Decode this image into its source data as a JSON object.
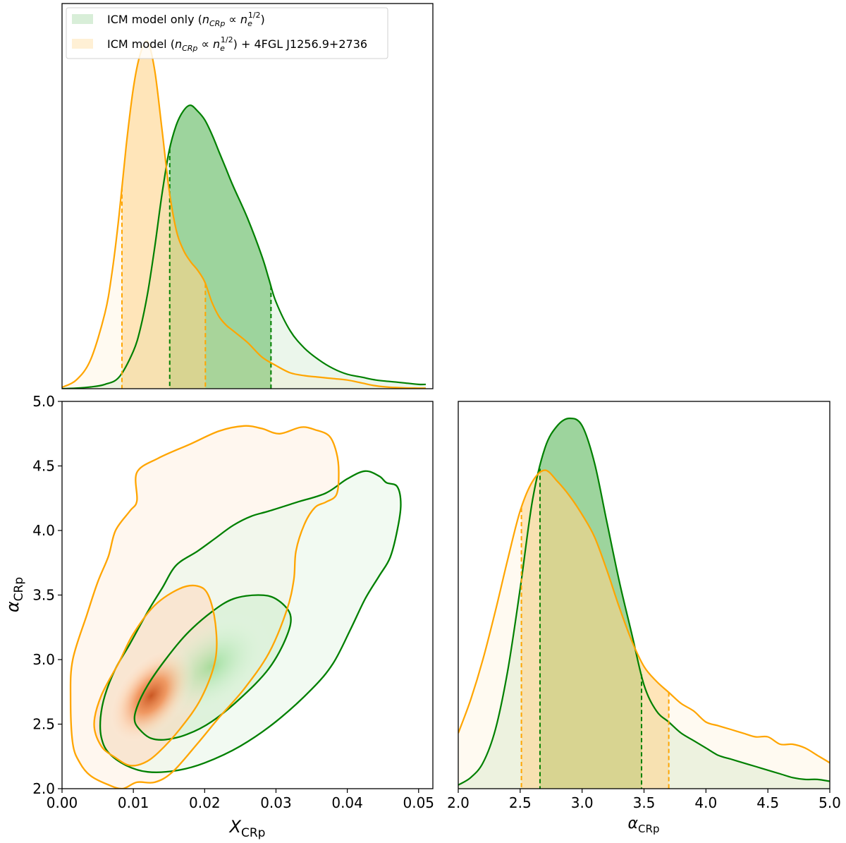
{
  "chart_data": [
    {
      "type": "area",
      "panel": "marginal-X_CRp",
      "xlim": [
        0.0,
        0.052
      ],
      "legend": {
        "placement": "top-left",
        "entries": [
          {
            "pre": "ICM model only (",
            "nsym": "n",
            "nsub": "CRp",
            "mid": " ∝ ",
            "esym": "n",
            "esub": "e",
            "esup": "1/2",
            "post": ")",
            "color": "#d8eed8"
          },
          {
            "pre": "ICM model (",
            "nsym": "n",
            "nsub": "CRp",
            "mid": " ∝ ",
            "esym": "n",
            "esub": "e",
            "esup": "1/2",
            "post": ") + 4FGL J1256.9+2736",
            "color": "#fff0d5"
          }
        ]
      },
      "series": [
        {
          "name": "ICM model only",
          "color": "#008000",
          "fill": "#5cb85c",
          "x": [
            0.0,
            0.002,
            0.004,
            0.006,
            0.008,
            0.01,
            0.011,
            0.012,
            0.013,
            0.014,
            0.015,
            0.016,
            0.017,
            0.018,
            0.019,
            0.02,
            0.021,
            0.022,
            0.023,
            0.024,
            0.026,
            0.028,
            0.029,
            0.03,
            0.032,
            0.034,
            0.036,
            0.038,
            0.04,
            0.042,
            0.044,
            0.046,
            0.048,
            0.05,
            0.051
          ],
          "y": [
            0.0,
            0.002,
            0.006,
            0.015,
            0.04,
            0.13,
            0.21,
            0.33,
            0.49,
            0.67,
            0.82,
            0.91,
            0.96,
            0.98,
            0.96,
            0.93,
            0.88,
            0.82,
            0.76,
            0.7,
            0.59,
            0.46,
            0.38,
            0.3,
            0.2,
            0.14,
            0.1,
            0.07,
            0.05,
            0.04,
            0.03,
            0.025,
            0.02,
            0.015,
            0.015
          ],
          "interval": [
            0.0151,
            0.0293
          ]
        },
        {
          "name": "ICM model + 4FGL J1256.9+2736",
          "color": "#ffa500",
          "fill": "#ffd48a",
          "x": [
            0.0,
            0.002,
            0.004,
            0.006,
            0.007,
            0.008,
            0.009,
            0.01,
            0.011,
            0.012,
            0.013,
            0.014,
            0.015,
            0.016,
            0.017,
            0.018,
            0.019,
            0.02,
            0.021,
            0.022,
            0.023,
            0.024,
            0.026,
            0.028,
            0.03,
            0.032,
            0.034,
            0.036,
            0.038,
            0.04,
            0.042,
            0.044,
            0.046,
            0.048,
            0.05,
            0.051
          ],
          "y": [
            0.005,
            0.03,
            0.1,
            0.26,
            0.4,
            0.6,
            0.84,
            1.04,
            1.16,
            1.2,
            1.1,
            0.9,
            0.69,
            0.55,
            0.48,
            0.44,
            0.41,
            0.37,
            0.3,
            0.25,
            0.22,
            0.2,
            0.16,
            0.11,
            0.08,
            0.055,
            0.045,
            0.04,
            0.035,
            0.03,
            0.02,
            0.01,
            0.005,
            0.003,
            0.002,
            0.002
          ],
          "interval": [
            0.0084,
            0.0201
          ]
        }
      ]
    },
    {
      "type": "contour",
      "panel": "joint",
      "xlabel_sym": "X",
      "xlabel_sub": "CRp",
      "ylabel_sym": "α",
      "ylabel_sub": "CRp",
      "xlim": [
        0.0,
        0.052
      ],
      "ylim": [
        2.0,
        5.0
      ],
      "xticks": [
        "0.00",
        "0.01",
        "0.02",
        "0.03",
        "0.04",
        "0.05"
      ],
      "yticks": [
        "2.0",
        "2.5",
        "3.0",
        "3.5",
        "4.0",
        "4.5",
        "5.0"
      ],
      "series": [
        {
          "name": "ICM model only",
          "color": "#008000",
          "peak": [
            0.021,
            2.95
          ],
          "contours": [
            [
              [
                0.0055,
                2.4
              ],
              [
                0.0065,
                2.28
              ],
              [
                0.009,
                2.18
              ],
              [
                0.012,
                2.13
              ],
              [
                0.016,
                2.14
              ],
              [
                0.02,
                2.2
              ],
              [
                0.025,
                2.33
              ],
              [
                0.03,
                2.52
              ],
              [
                0.035,
                2.77
              ],
              [
                0.038,
                2.97
              ],
              [
                0.0405,
                3.24
              ],
              [
                0.0425,
                3.47
              ],
              [
                0.0445,
                3.65
              ],
              [
                0.046,
                3.79
              ],
              [
                0.047,
                4.0
              ],
              [
                0.0475,
                4.2
              ],
              [
                0.047,
                4.34
              ],
              [
                0.0455,
                4.37
              ],
              [
                0.0445,
                4.42
              ],
              [
                0.0425,
                4.46
              ],
              [
                0.04,
                4.4
              ],
              [
                0.037,
                4.29
              ],
              [
                0.033,
                4.22
              ],
              [
                0.029,
                4.15
              ],
              [
                0.0265,
                4.11
              ],
              [
                0.024,
                4.04
              ],
              [
                0.0215,
                3.94
              ],
              [
                0.019,
                3.84
              ],
              [
                0.016,
                3.73
              ],
              [
                0.014,
                3.55
              ],
              [
                0.012,
                3.37
              ],
              [
                0.0095,
                3.12
              ],
              [
                0.0075,
                2.93
              ],
              [
                0.006,
                2.72
              ],
              [
                0.0054,
                2.55
              ]
            ],
            [
              [
                0.0102,
                2.52
              ],
              [
                0.0112,
                2.44
              ],
              [
                0.0125,
                2.39
              ],
              [
                0.0145,
                2.38
              ],
              [
                0.0175,
                2.42
              ],
              [
                0.021,
                2.52
              ],
              [
                0.025,
                2.7
              ],
              [
                0.029,
                2.93
              ],
              [
                0.0315,
                3.18
              ],
              [
                0.032,
                3.35
              ],
              [
                0.03,
                3.47
              ],
              [
                0.0275,
                3.5
              ],
              [
                0.024,
                3.47
              ],
              [
                0.021,
                3.37
              ],
              [
                0.0175,
                3.2
              ],
              [
                0.0145,
                3.0
              ],
              [
                0.012,
                2.8
              ],
              [
                0.0105,
                2.63
              ]
            ]
          ]
        },
        {
          "name": "ICM model + 4FGL J1256.9+2736",
          "color": "#ffa500",
          "peak": [
            0.0125,
            2.72
          ],
          "contours": [
            [
              [
                0.0015,
                2.35
              ],
              [
                0.0025,
                2.2
              ],
              [
                0.004,
                2.1
              ],
              [
                0.0065,
                2.03
              ],
              [
                0.0085,
                2.0
              ],
              [
                0.0105,
                2.05
              ],
              [
                0.013,
                2.05
              ],
              [
                0.0155,
                2.13
              ],
              [
                0.019,
                2.35
              ],
              [
                0.022,
                2.55
              ],
              [
                0.0255,
                2.77
              ],
              [
                0.029,
                3.05
              ],
              [
                0.0315,
                3.38
              ],
              [
                0.0325,
                3.62
              ],
              [
                0.0328,
                3.84
              ],
              [
                0.034,
                4.05
              ],
              [
                0.0355,
                4.18
              ],
              [
                0.037,
                4.22
              ],
              [
                0.0385,
                4.28
              ],
              [
                0.0388,
                4.45
              ],
              [
                0.0385,
                4.6
              ],
              [
                0.0375,
                4.73
              ],
              [
                0.0355,
                4.78
              ],
              [
                0.0335,
                4.8
              ],
              [
                0.0305,
                4.75
              ],
              [
                0.028,
                4.79
              ],
              [
                0.0255,
                4.81
              ],
              [
                0.022,
                4.77
              ],
              [
                0.018,
                4.67
              ],
              [
                0.0135,
                4.56
              ],
              [
                0.0105,
                4.45
              ],
              [
                0.0105,
                4.23
              ],
              [
                0.0095,
                4.15
              ],
              [
                0.0075,
                4.0
              ],
              [
                0.0065,
                3.8
              ],
              [
                0.005,
                3.6
              ],
              [
                0.0035,
                3.35
              ],
              [
                0.0015,
                3.0
              ],
              [
                0.0012,
                2.7
              ]
            ],
            [
              [
                0.0045,
                2.5
              ],
              [
                0.0055,
                2.33
              ],
              [
                0.0075,
                2.24
              ],
              [
                0.0095,
                2.18
              ],
              [
                0.0115,
                2.2
              ],
              [
                0.0135,
                2.28
              ],
              [
                0.0165,
                2.46
              ],
              [
                0.0195,
                2.7
              ],
              [
                0.0215,
                3.0
              ],
              [
                0.0215,
                3.28
              ],
              [
                0.0205,
                3.5
              ],
              [
                0.019,
                3.57
              ],
              [
                0.0165,
                3.55
              ],
              [
                0.013,
                3.42
              ],
              [
                0.01,
                3.2
              ],
              [
                0.008,
                2.98
              ],
              [
                0.0055,
                2.72
              ]
            ]
          ]
        }
      ]
    },
    {
      "type": "area",
      "panel": "marginal-alpha_CRp",
      "xlabel_sym": "α",
      "xlabel_sub": "CRp",
      "xlim": [
        2.0,
        5.0
      ],
      "xticks": [
        "2.0",
        "2.5",
        "3.0",
        "3.5",
        "4.0",
        "4.5",
        "5.0"
      ],
      "series": [
        {
          "name": "ICM model only",
          "color": "#008000",
          "fill": "#5cb85c",
          "x": [
            2.0,
            2.1,
            2.2,
            2.3,
            2.4,
            2.5,
            2.6,
            2.7,
            2.8,
            2.9,
            3.0,
            3.1,
            3.2,
            3.3,
            3.4,
            3.5,
            3.6,
            3.7,
            3.8,
            3.9,
            4.0,
            4.1,
            4.2,
            4.3,
            4.4,
            4.5,
            4.6,
            4.7,
            4.8,
            4.9,
            5.0
          ],
          "y": [
            0.01,
            0.03,
            0.07,
            0.16,
            0.32,
            0.54,
            0.78,
            0.92,
            0.98,
            1.0,
            0.98,
            0.88,
            0.72,
            0.56,
            0.42,
            0.28,
            0.21,
            0.18,
            0.15,
            0.13,
            0.11,
            0.09,
            0.08,
            0.07,
            0.06,
            0.05,
            0.04,
            0.03,
            0.025,
            0.025,
            0.02
          ],
          "interval": [
            2.66,
            3.48
          ]
        },
        {
          "name": "ICM model + 4FGL J1256.9+2736",
          "color": "#ffa500",
          "fill": "#ffd48a",
          "x": [
            2.0,
            2.1,
            2.2,
            2.3,
            2.4,
            2.5,
            2.6,
            2.7,
            2.8,
            2.9,
            3.0,
            3.1,
            3.2,
            3.3,
            3.4,
            3.5,
            3.6,
            3.7,
            3.8,
            3.9,
            4.0,
            4.1,
            4.2,
            4.3,
            4.4,
            4.5,
            4.6,
            4.7,
            4.8,
            4.9,
            5.0
          ],
          "y": [
            0.15,
            0.24,
            0.35,
            0.48,
            0.62,
            0.75,
            0.83,
            0.86,
            0.83,
            0.79,
            0.74,
            0.68,
            0.59,
            0.49,
            0.4,
            0.33,
            0.29,
            0.26,
            0.23,
            0.21,
            0.18,
            0.17,
            0.16,
            0.15,
            0.14,
            0.14,
            0.12,
            0.12,
            0.11,
            0.09,
            0.07
          ],
          "interval": [
            2.51,
            3.7
          ]
        }
      ]
    }
  ]
}
